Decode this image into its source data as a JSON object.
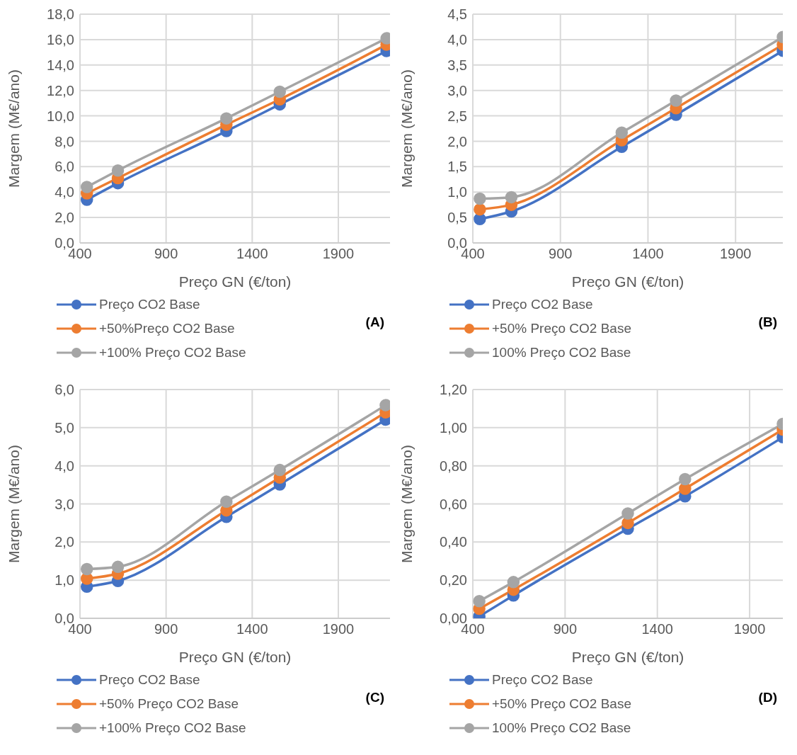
{
  "chart_data": [
    {
      "type": "line",
      "xlabel": "Preço GN (€/ton)",
      "ylabel": "Margem (M€/ano)",
      "annotations": [
        "(A)"
      ],
      "x": [
        440,
        620,
        1250,
        1560,
        2180
      ],
      "xlim": [
        400,
        2200
      ],
      "xticks": [
        400,
        900,
        1400,
        1900
      ],
      "ylim": [
        0,
        18
      ],
      "yticks": [
        {
          "value": 0,
          "label": "0,0"
        },
        {
          "value": 2,
          "label": "2,0"
        },
        {
          "value": 4,
          "label": "4,0"
        },
        {
          "value": 6,
          "label": "6,0"
        },
        {
          "value": 8,
          "label": "8,0"
        },
        {
          "value": 10,
          "label": "10,0"
        },
        {
          "value": 12,
          "label": "12,0"
        },
        {
          "value": 14,
          "label": "14,0"
        },
        {
          "value": 16,
          "label": "16,0"
        },
        {
          "value": 18,
          "label": "18,0"
        }
      ],
      "grid": true,
      "legend": "bottom",
      "marker": "circle",
      "line_style": "solid",
      "series": [
        {
          "name": "Preço CO2 Base",
          "color": "#4472c4",
          "values": [
            3.4,
            4.7,
            8.8,
            10.9,
            15.1
          ]
        },
        {
          "name": "+50%Preço CO2 Base",
          "color": "#ed7d31",
          "values": [
            3.9,
            5.1,
            9.3,
            11.3,
            15.6
          ]
        },
        {
          "name": "+100% Preço CO2 Base",
          "color": "#a5a5a5",
          "values": [
            4.4,
            5.7,
            9.8,
            11.9,
            16.1
          ]
        }
      ]
    },
    {
      "type": "line",
      "xlabel": "Preço GN (€/ton)",
      "ylabel": "Margem (M€/ano)",
      "annotations": [
        "(B)"
      ],
      "x": [
        440,
        620,
        1250,
        1560,
        2170
      ],
      "xlim": [
        400,
        2170
      ],
      "xticks": [
        400,
        900,
        1400,
        1900
      ],
      "ylim": [
        0,
        4.5
      ],
      "yticks": [
        {
          "value": 0,
          "label": "0,0"
        },
        {
          "value": 0.5,
          "label": "0,5"
        },
        {
          "value": 1,
          "label": "1,0"
        },
        {
          "value": 1.5,
          "label": "1,5"
        },
        {
          "value": 2,
          "label": "2,0"
        },
        {
          "value": 2.5,
          "label": "2,5"
        },
        {
          "value": 3,
          "label": "3,0"
        },
        {
          "value": 3.5,
          "label": "3,5"
        },
        {
          "value": 4,
          "label": "4,0"
        },
        {
          "value": 4.5,
          "label": "4,5"
        }
      ],
      "grid": true,
      "legend": "bottom",
      "marker": "circle",
      "line_style": "solid",
      "series": [
        {
          "name": "Preço CO2 Base",
          "color": "#4472c4",
          "values": [
            0.47,
            0.62,
            1.89,
            2.52,
            3.78
          ]
        },
        {
          "name": "+50% Preço CO2 Base",
          "color": "#ed7d31",
          "values": [
            0.66,
            0.75,
            2.02,
            2.65,
            3.9
          ]
        },
        {
          "name": "100% Preço CO2 Base",
          "color": "#a5a5a5",
          "values": [
            0.87,
            0.9,
            2.17,
            2.8,
            4.05
          ]
        }
      ]
    },
    {
      "type": "line",
      "xlabel": "Preço GN (€/ton)",
      "ylabel": "Margem (M€/ano)",
      "annotations": [
        "(C)"
      ],
      "x": [
        440,
        620,
        1250,
        1560,
        2175
      ],
      "xlim": [
        400,
        2200
      ],
      "xticks": [
        400,
        900,
        1400,
        1900
      ],
      "ylim": [
        0,
        6
      ],
      "yticks": [
        {
          "value": 0,
          "label": "0,0"
        },
        {
          "value": 1,
          "label": "1,0"
        },
        {
          "value": 2,
          "label": "2,0"
        },
        {
          "value": 3,
          "label": "3,0"
        },
        {
          "value": 4,
          "label": "4,0"
        },
        {
          "value": 5,
          "label": "5,0"
        },
        {
          "value": 6,
          "label": "6,0"
        }
      ],
      "grid": true,
      "legend": "bottom",
      "marker": "circle",
      "line_style": "solid",
      "series": [
        {
          "name": "Preço CO2 Base",
          "color": "#4472c4",
          "values": [
            0.83,
            0.98,
            2.66,
            3.51,
            5.21
          ]
        },
        {
          "name": "+50% Preço CO2 Base",
          "color": "#ed7d31",
          "values": [
            1.04,
            1.17,
            2.83,
            3.69,
            5.4
          ]
        },
        {
          "name": "+100% Preço CO2 Base",
          "color": "#a5a5a5",
          "values": [
            1.29,
            1.35,
            3.06,
            3.89,
            5.59
          ]
        }
      ]
    },
    {
      "type": "line",
      "xlabel": "Preço GN (€/ton)",
      "ylabel": "Margem (M€/ano)",
      "annotations": [
        "(D)"
      ],
      "x": [
        435,
        620,
        1240,
        1550,
        2080
      ],
      "xlim": [
        400,
        2080
      ],
      "xticks": [
        400,
        900,
        1400,
        1900
      ],
      "ylim": [
        0,
        1.2
      ],
      "yticks": [
        {
          "value": 0,
          "label": "0,00"
        },
        {
          "value": 0.2,
          "label": "0,20"
        },
        {
          "value": 0.4,
          "label": "0,40"
        },
        {
          "value": 0.6,
          "label": "0,60"
        },
        {
          "value": 0.8,
          "label": "0,80"
        },
        {
          "value": 1,
          "label": "1,00"
        },
        {
          "value": 1.2,
          "label": "1,20"
        }
      ],
      "grid": true,
      "legend": "bottom",
      "marker": "circle",
      "line_style": "solid",
      "series": [
        {
          "name": "Preço CO2 Base",
          "color": "#4472c4",
          "values": [
            0.01,
            0.12,
            0.47,
            0.64,
            0.95
          ]
        },
        {
          "name": "+50% Preço CO2 Base",
          "color": "#ed7d31",
          "values": [
            0.05,
            0.15,
            0.5,
            0.68,
            0.99
          ]
        },
        {
          "name": "100% Preço CO2 Base",
          "color": "#a5a5a5",
          "values": [
            0.09,
            0.19,
            0.55,
            0.73,
            1.02
          ]
        }
      ]
    }
  ]
}
